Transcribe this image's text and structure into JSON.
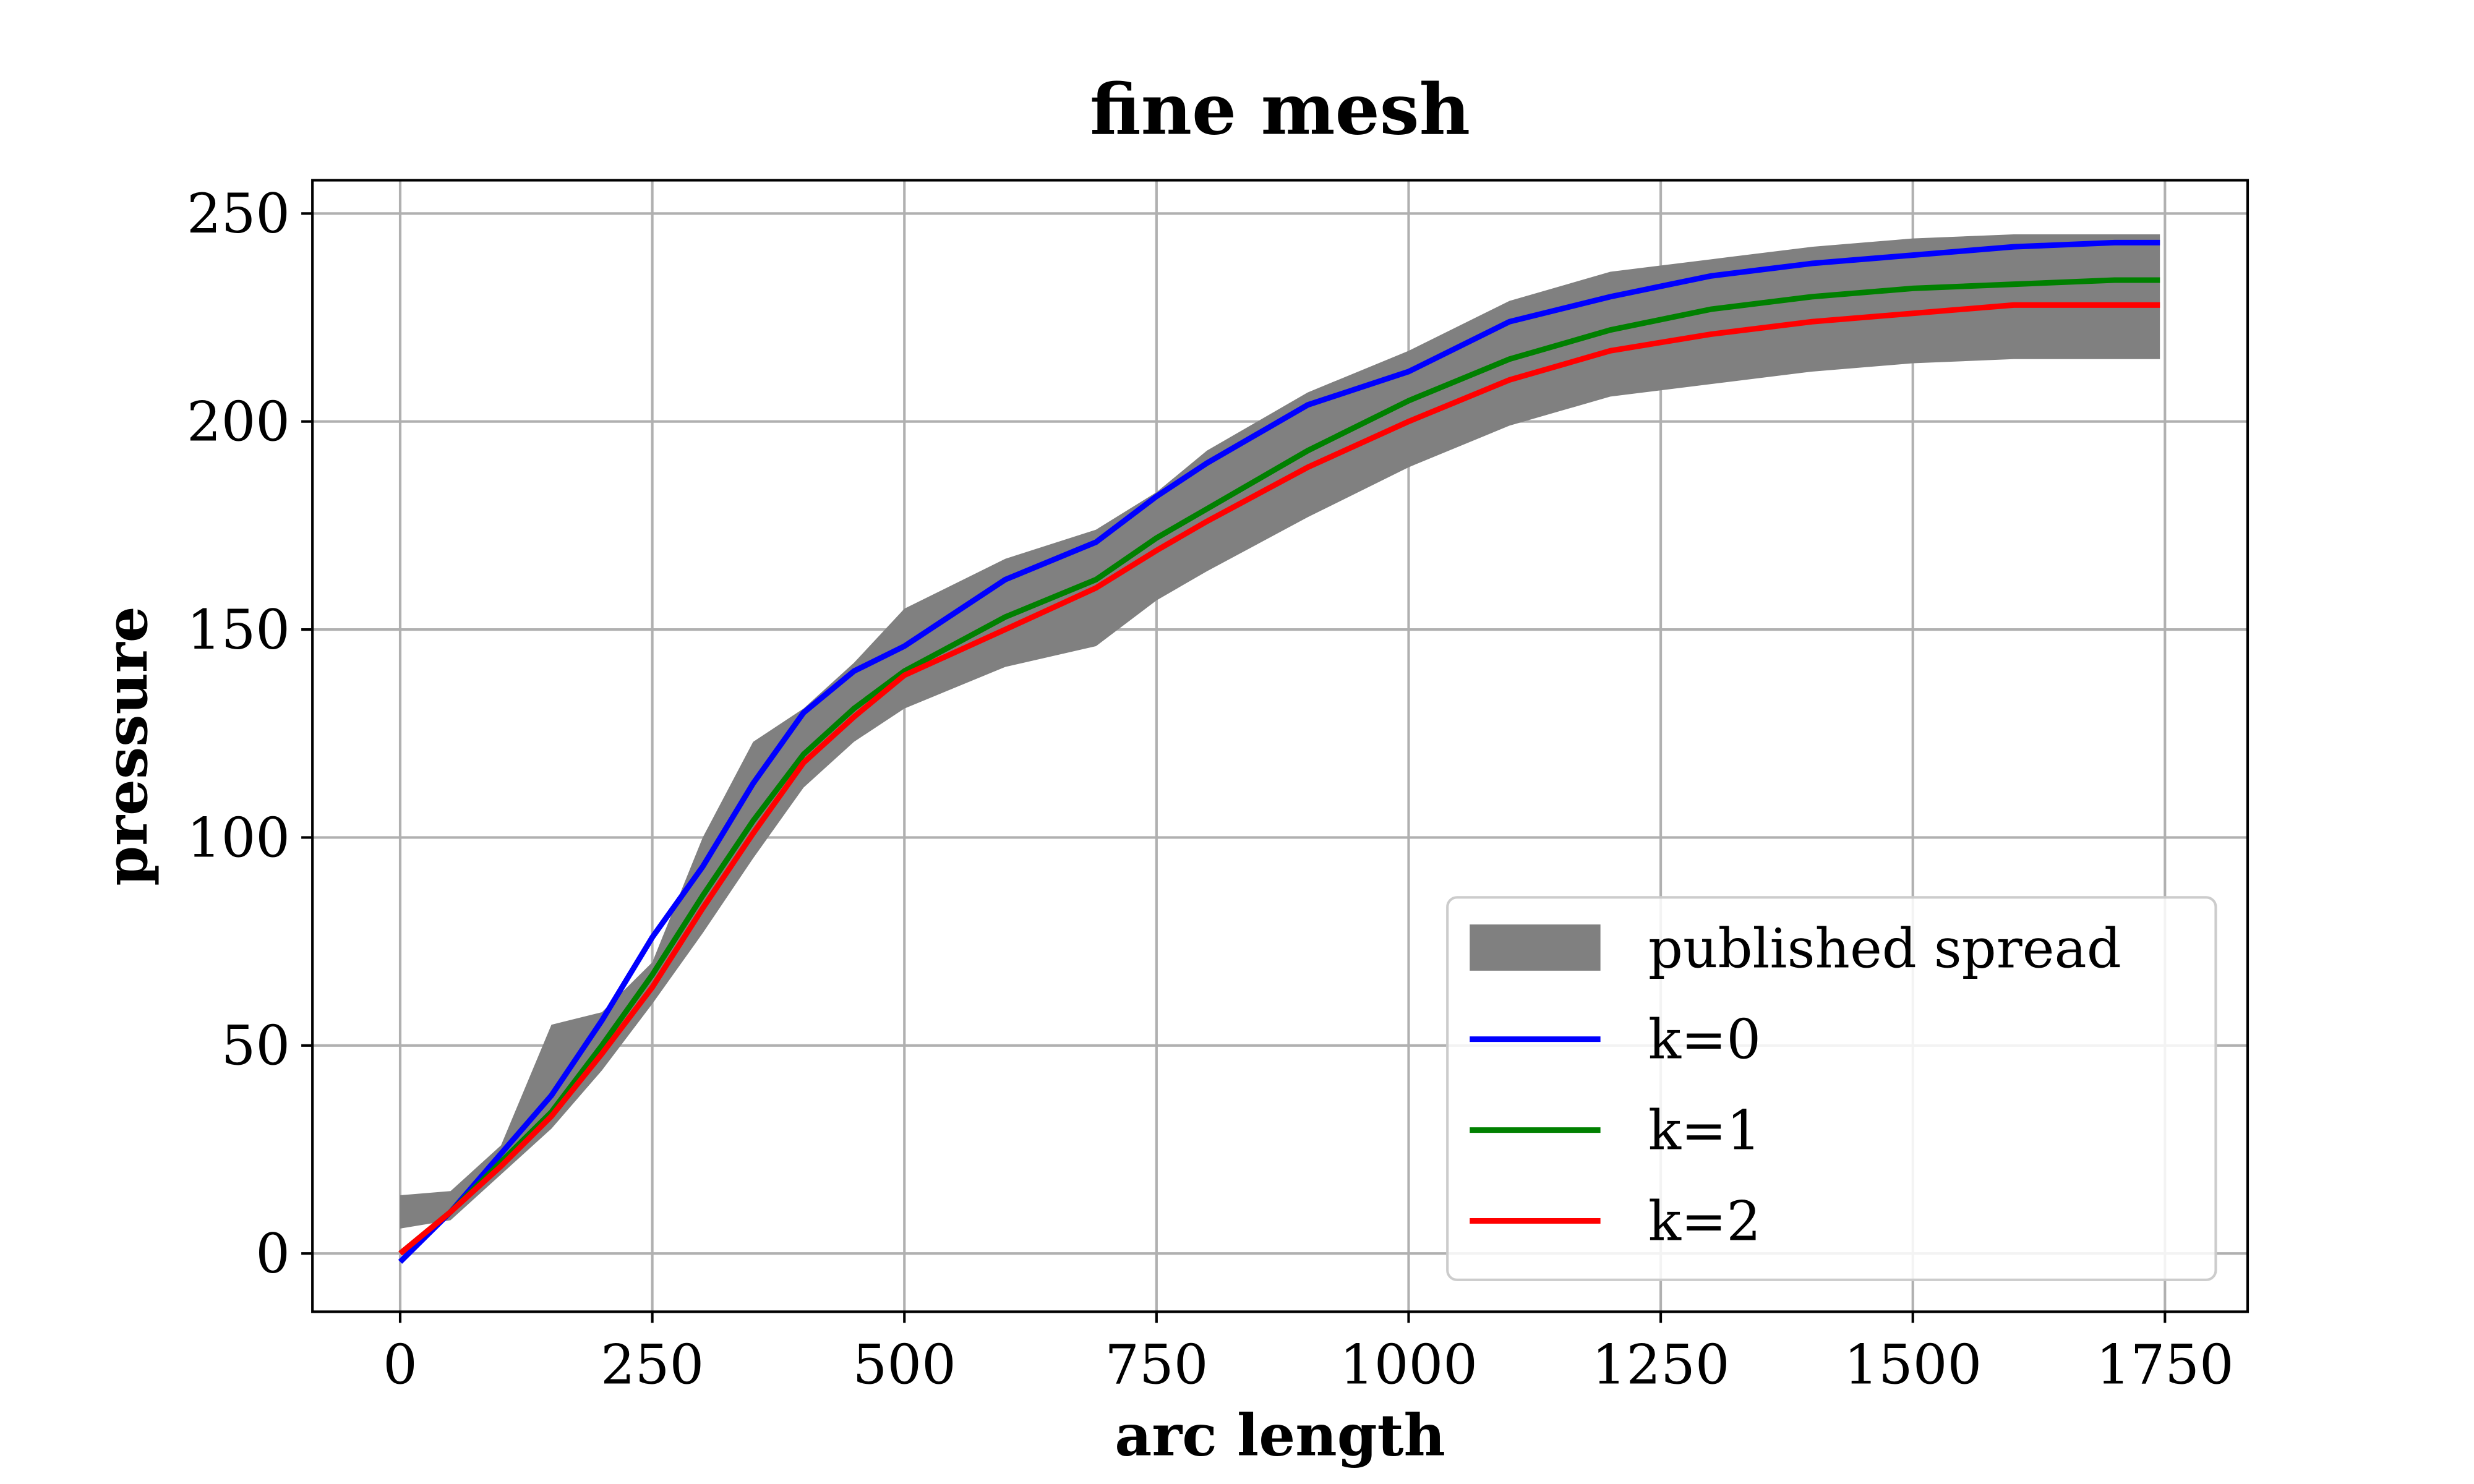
{
  "chart_data": {
    "type": "line",
    "title": "fine mesh",
    "xlabel": "arc length",
    "ylabel": "pressure",
    "x": [
      0,
      50,
      100,
      150,
      200,
      250,
      300,
      350,
      400,
      450,
      500,
      600,
      690,
      750,
      800,
      900,
      1000,
      1100,
      1200,
      1300,
      1400,
      1500,
      1600,
      1700,
      1745
    ],
    "band": {
      "name": "published spread",
      "color": "#808080",
      "lower": [
        6,
        8,
        19,
        30,
        44,
        60,
        77,
        95,
        112,
        123,
        131,
        141,
        146,
        157,
        164,
        177,
        189,
        199,
        206,
        209,
        212,
        214,
        215,
        215,
        215
      ],
      "upper": [
        14,
        15,
        26,
        55,
        58,
        70,
        100,
        123,
        131,
        142,
        155,
        167,
        174,
        183,
        193,
        207,
        217,
        229,
        236,
        239,
        242,
        244,
        245,
        245,
        245
      ]
    },
    "series": [
      {
        "name": "k=0",
        "color": "#0000ff",
        "values": [
          -2,
          10,
          24,
          38,
          56,
          76,
          93,
          113,
          130,
          140,
          146,
          162,
          171,
          182,
          190,
          204,
          212,
          224,
          230,
          235,
          238,
          240,
          242,
          243,
          243
        ]
      },
      {
        "name": "k=1",
        "color": "#008000",
        "values": [
          0,
          10,
          22,
          34,
          50,
          67,
          86,
          104,
          120,
          131,
          140,
          153,
          162,
          172,
          179,
          193,
          205,
          215,
          222,
          227,
          230,
          232,
          233,
          234,
          234
        ]
      },
      {
        "name": "k=2",
        "color": "#ff0000",
        "values": [
          0,
          10,
          21,
          33,
          48,
          64,
          83,
          101,
          118,
          129,
          139,
          150,
          160,
          169,
          176,
          189,
          200,
          210,
          217,
          221,
          224,
          226,
          228,
          228,
          228
        ]
      }
    ],
    "xlim": [
      -87,
      1832
    ],
    "ylim": [
      -14,
      258
    ],
    "xticks": [
      0,
      250,
      500,
      750,
      1000,
      1250,
      1500,
      1750
    ],
    "yticks": [
      0,
      50,
      100,
      150,
      200,
      250
    ],
    "grid": true,
    "legend": "lower right"
  }
}
